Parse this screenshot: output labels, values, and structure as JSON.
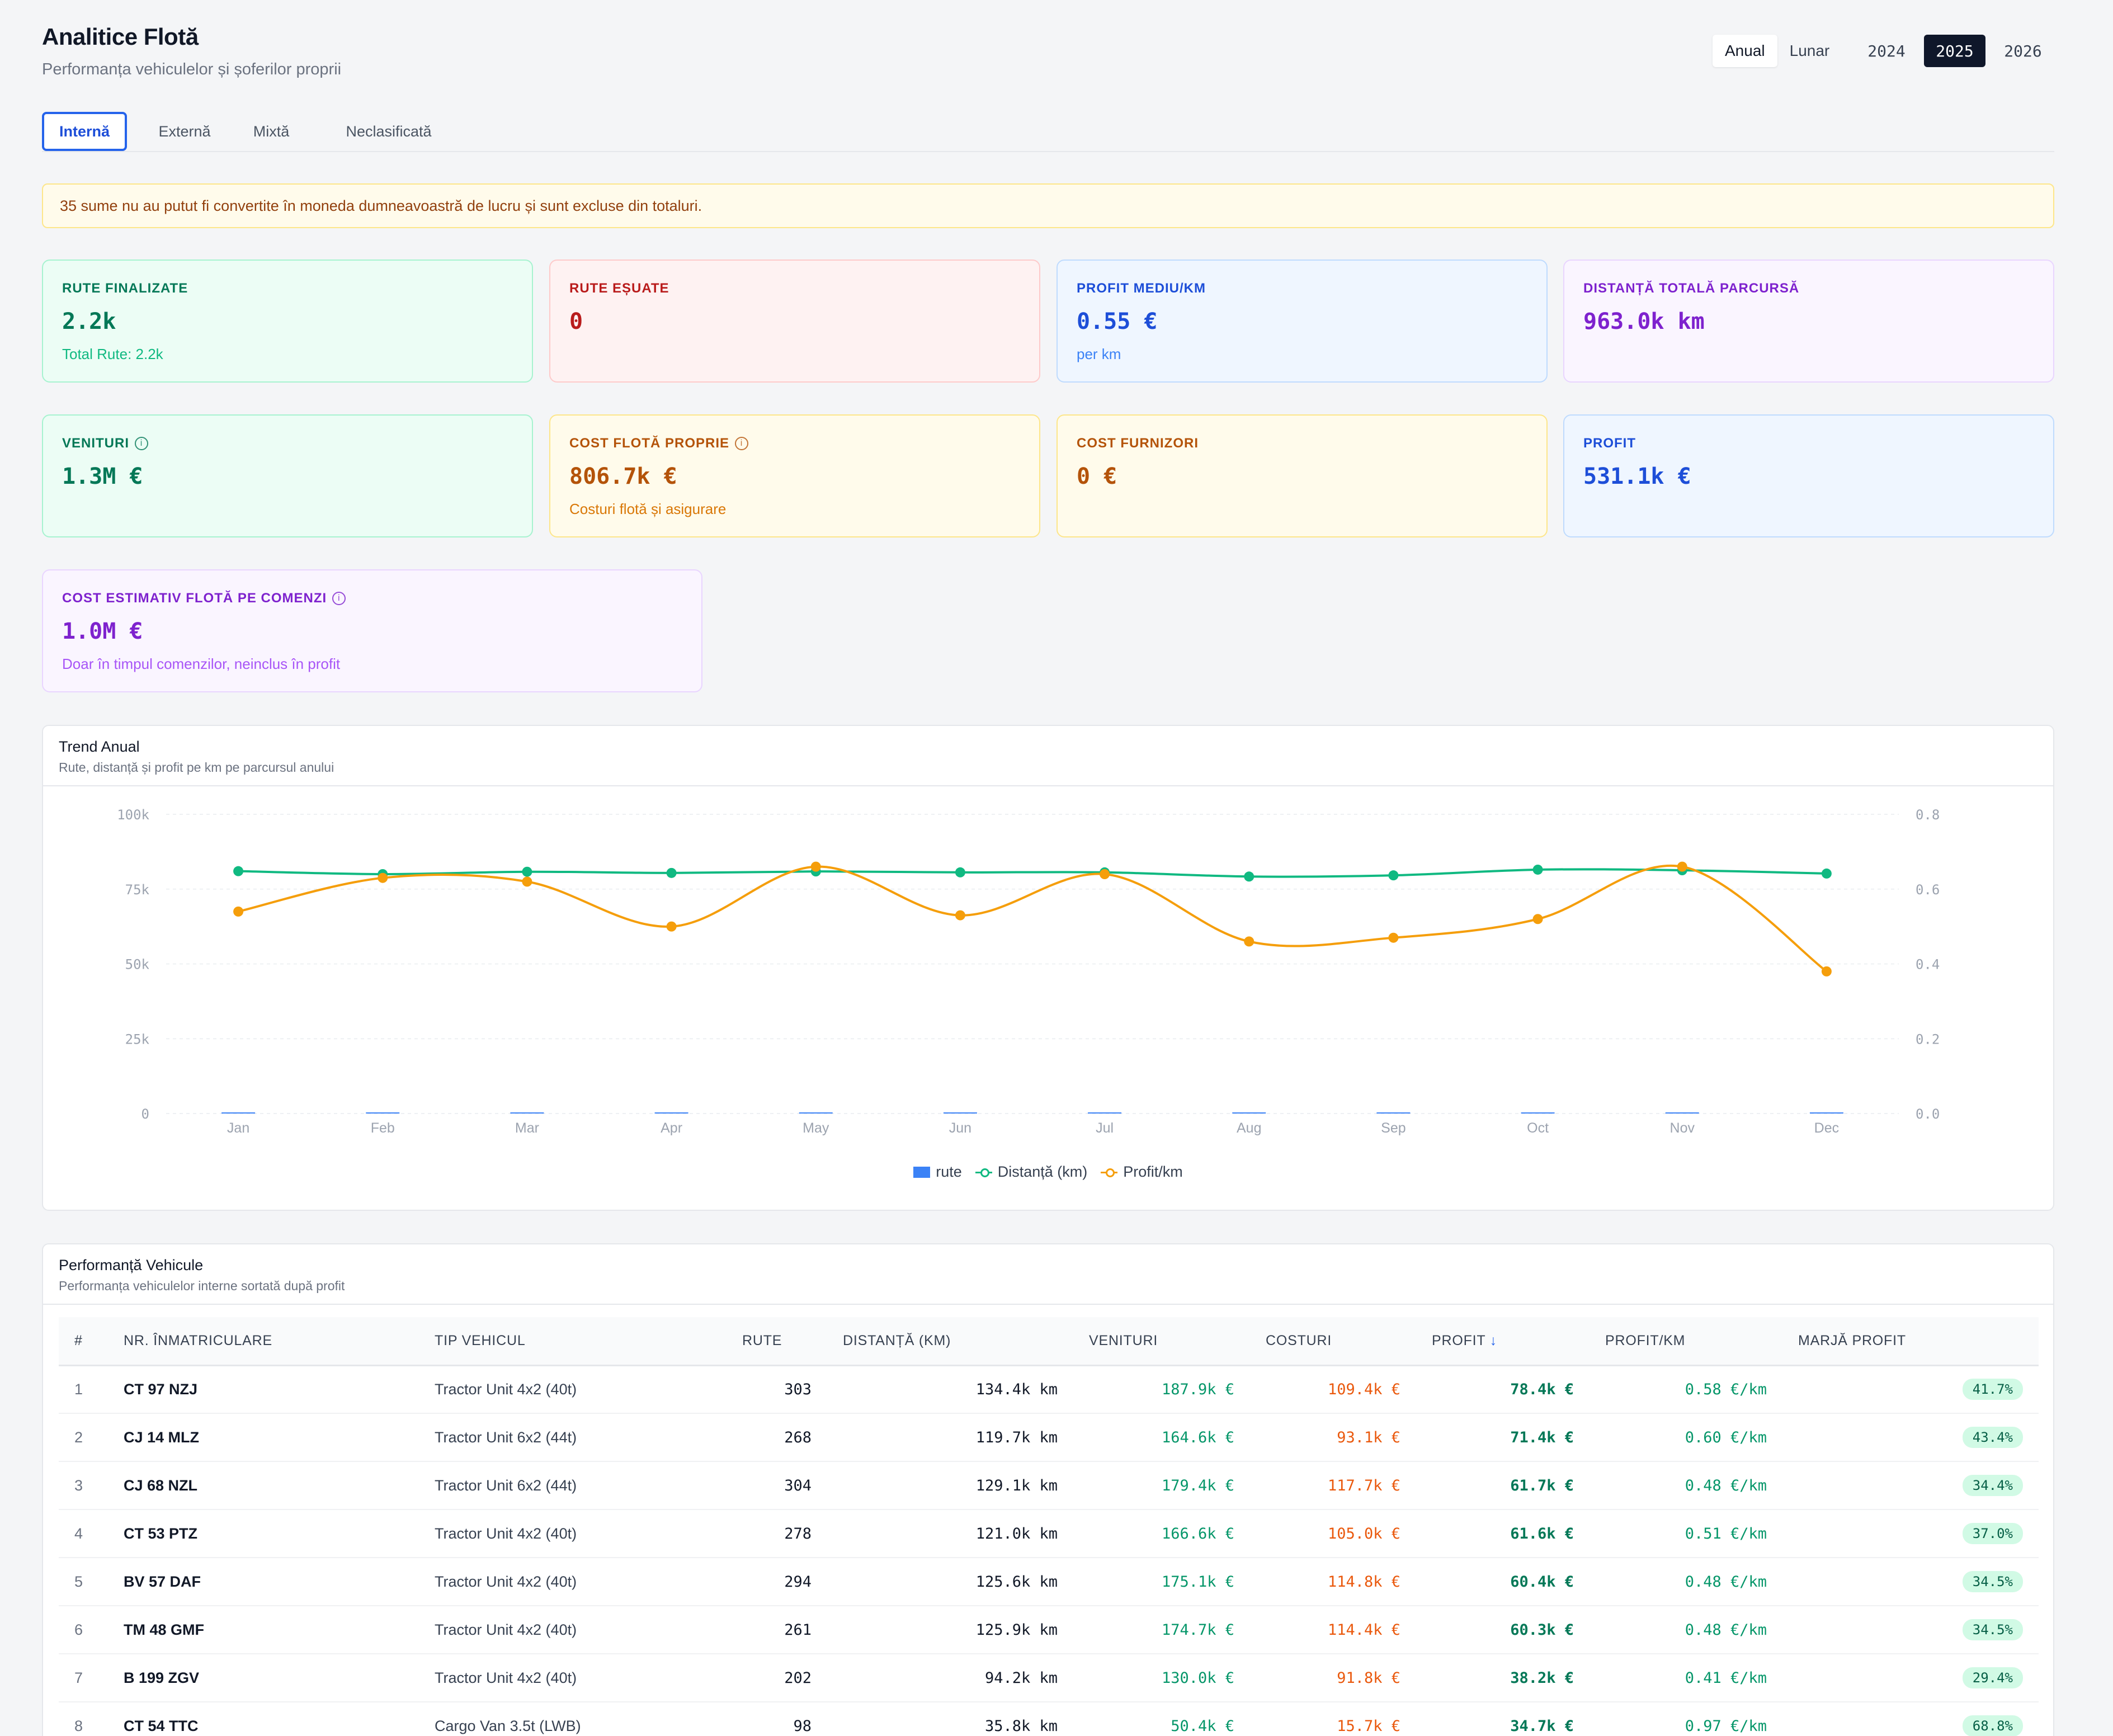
{
  "header": {
    "title": "Analitice Flotă",
    "subtitle": "Performanța vehiculelor și șoferilor proprii"
  },
  "period": {
    "options": [
      "Anual",
      "Lunar"
    ],
    "selected": "Anual"
  },
  "years": {
    "options": [
      "2024",
      "2025",
      "2026"
    ],
    "selected": "2025"
  },
  "tabs": [
    "Internă",
    "Externă",
    "Mixtă",
    "Neclasificată"
  ],
  "active_tab": "Internă",
  "alert": "35 sume nu au putut fi convertite în moneda dumneavoastră de lucru și sunt excluse din totaluri.",
  "cards": {
    "routes_done": {
      "label": "RUTE FINALIZATE",
      "value": "2.2k",
      "sub": "Total Rute: 2.2k"
    },
    "routes_failed": {
      "label": "RUTE EȘUATE",
      "value": "0"
    },
    "profit_km": {
      "label": "PROFIT MEDIU/KM",
      "value": "0.55 €",
      "sub": "per km"
    },
    "distance": {
      "label": "DISTANȚĂ TOTALĂ PARCURSĂ",
      "value": "963.0k km"
    },
    "revenue": {
      "label": "VENITURI",
      "value": "1.3M €"
    },
    "own_cost": {
      "label": "COST FLOTĂ PROPRIE",
      "value": "806.7k €",
      "sub": "Costuri flotă și asigurare"
    },
    "supplier_cost": {
      "label": "COST FURNIZORI",
      "value": "0 €"
    },
    "profit": {
      "label": "PROFIT",
      "value": "531.1k €"
    },
    "est_cost": {
      "label": "COST ESTIMATIV FLOTĂ PE COMENZI",
      "value": "1.0M €",
      "sub": "Doar în timpul comenzilor, neinclus în profit"
    }
  },
  "trend": {
    "title": "Trend Anual",
    "subtitle": "Rute, distanță și profit pe km pe parcursul anului"
  },
  "chart_data": {
    "type": "line",
    "categories": [
      "Jan",
      "Feb",
      "Mar",
      "Apr",
      "May",
      "Jun",
      "Jul",
      "Aug",
      "Sep",
      "Oct",
      "Nov",
      "Dec"
    ],
    "y_left": {
      "ticks": [
        "0",
        "25k",
        "50k",
        "75k",
        "100k"
      ],
      "range": [
        0,
        100000
      ]
    },
    "y_right": {
      "ticks": [
        "0.0",
        "0.2",
        "0.4",
        "0.6",
        "0.8"
      ],
      "range": [
        0,
        0.8
      ]
    },
    "grid": true,
    "legend_position": "bottom-center",
    "series": [
      {
        "name": "rute",
        "type": "bar",
        "axis": "left",
        "color": "#3b82f6",
        "values": [
          190,
          185,
          190,
          180,
          190,
          185,
          190,
          175,
          180,
          195,
          190,
          185
        ]
      },
      {
        "name": "Distanță (km)",
        "type": "line",
        "axis": "left",
        "color": "#10b981",
        "values": [
          81000,
          80000,
          80800,
          80400,
          80900,
          80600,
          80600,
          79200,
          79600,
          81500,
          81300,
          80200
        ]
      },
      {
        "name": "Profit/km",
        "type": "line",
        "axis": "right",
        "color": "#f59e0b",
        "values": [
          0.54,
          0.63,
          0.62,
          0.5,
          0.66,
          0.53,
          0.64,
          0.46,
          0.47,
          0.52,
          0.66,
          0.38
        ]
      }
    ]
  },
  "vehicles": {
    "title": "Performanță Vehicule",
    "subtitle": "Performanța vehiculelor interne sortată după profit",
    "columns": [
      "#",
      "NR. ÎNMATRICULARE",
      "TIP VEHICUL",
      "RUTE",
      "DISTANȚĂ (KM)",
      "VENITURI",
      "COSTURI",
      "PROFIT",
      "PROFIT/KM",
      "MARJĂ PROFIT"
    ],
    "sort_arrow": "↓",
    "rows": [
      [
        "1",
        "CT 97 NZJ",
        "Tractor Unit 4x2 (40t)",
        "303",
        "134.4k km",
        "187.9k €",
        "109.4k €",
        "78.4k €",
        "0.58 €/km",
        "41.7%"
      ],
      [
        "2",
        "CJ 14 MLZ",
        "Tractor Unit 6x2 (44t)",
        "268",
        "119.7k km",
        "164.6k €",
        "93.1k €",
        "71.4k €",
        "0.60 €/km",
        "43.4%"
      ],
      [
        "3",
        "CJ 68 NZL",
        "Tractor Unit 6x2 (44t)",
        "304",
        "129.1k km",
        "179.4k €",
        "117.7k €",
        "61.7k €",
        "0.48 €/km",
        "34.4%"
      ],
      [
        "4",
        "CT 53 PTZ",
        "Tractor Unit 4x2 (40t)",
        "278",
        "121.0k km",
        "166.6k €",
        "105.0k €",
        "61.6k €",
        "0.51 €/km",
        "37.0%"
      ],
      [
        "5",
        "BV 57 DAF",
        "Tractor Unit 4x2 (40t)",
        "294",
        "125.6k km",
        "175.1k €",
        "114.8k €",
        "60.4k €",
        "0.48 €/km",
        "34.5%"
      ],
      [
        "6",
        "TM 48 GMF",
        "Tractor Unit 4x2 (40t)",
        "261",
        "125.9k km",
        "174.7k €",
        "114.4k €",
        "60.3k €",
        "0.48 €/km",
        "34.5%"
      ],
      [
        "7",
        "B 199 ZGV",
        "Tractor Unit 4x2 (40t)",
        "202",
        "94.2k km",
        "130.0k €",
        "91.8k €",
        "38.2k €",
        "0.41 €/km",
        "29.4%"
      ],
      [
        "8",
        "CT 54 TTC",
        "Cargo Van 3.5t (LWB)",
        "98",
        "35.8k km",
        "50.4k €",
        "15.7k €",
        "34.7k €",
        "0.97 €/km",
        "68.8%"
      ]
    ]
  }
}
